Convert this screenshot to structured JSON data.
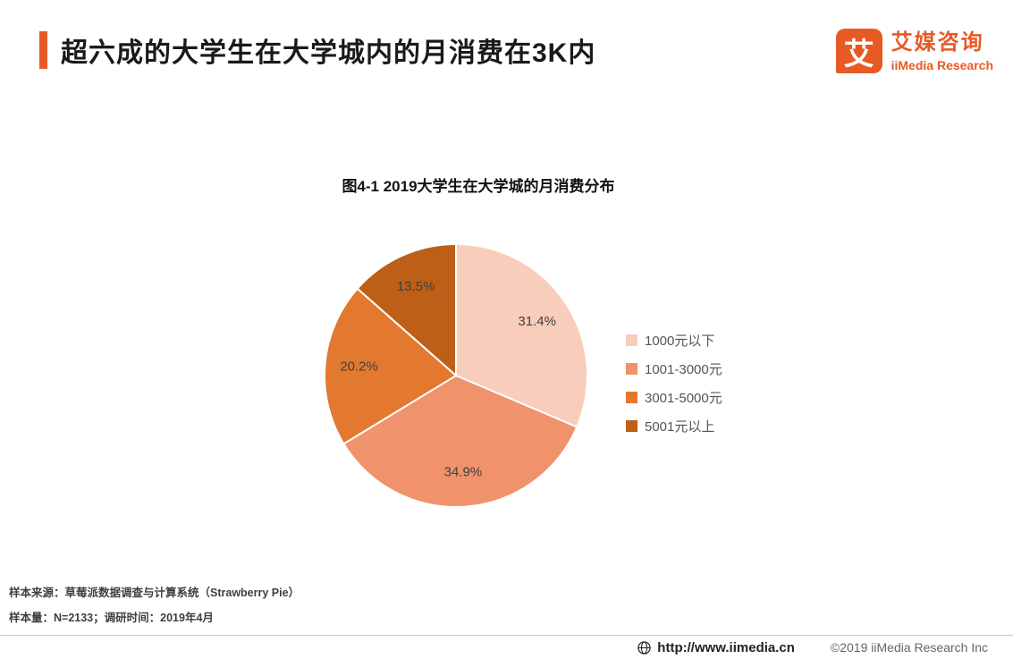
{
  "header": {
    "title": "超六成的大学生在大学城内的月消费在3K内",
    "accent_color": "#e85a24"
  },
  "logo": {
    "icon_char": "艾",
    "name_cn": "艾媒咨询",
    "name_en": "iiMedia Research",
    "brand_color": "#e85a24"
  },
  "chart_data": {
    "type": "pie",
    "title": "图4-1 2019大学生在大学城的月消费分布",
    "start_angle_deg": 0,
    "direction": "clockwise",
    "legend_position": "right",
    "slices": [
      {
        "label": "1000元以下",
        "value": 31.4,
        "display": "31.4%",
        "color": "#f8cdbc"
      },
      {
        "label": "1001-3000元",
        "value": 34.9,
        "display": "34.9%",
        "color": "#f0926b"
      },
      {
        "label": "3001-5000元",
        "value": 20.2,
        "display": "20.2%",
        "color": "#e2792e"
      },
      {
        "label": "5001元以上",
        "value": 13.5,
        "display": "13.5%",
        "color": "#bd5f17"
      }
    ]
  },
  "footer": {
    "source": "样本来源：草莓派数据调查与计算系统（Strawberry Pie）",
    "sample": "样本量：N=2133；调研时间：2019年4月"
  },
  "bottombar": {
    "url": "http://www.iimedia.cn",
    "copyright": "©2019  iiMedia Research Inc"
  }
}
